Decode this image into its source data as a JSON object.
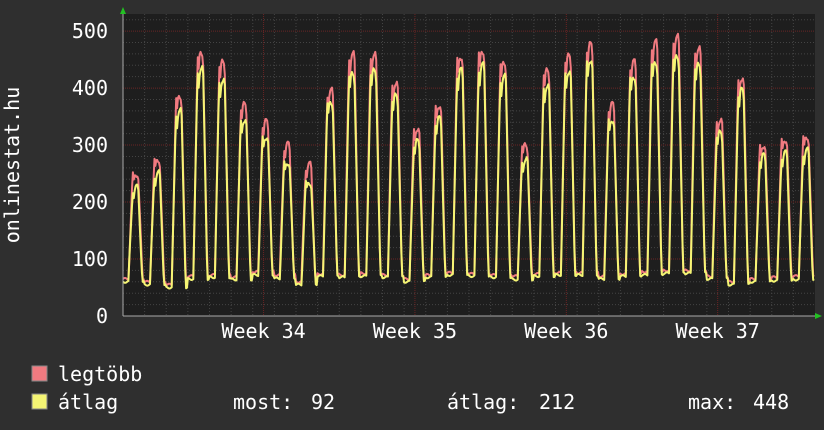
{
  "chart_data": {
    "type": "line",
    "ylabel": "onlinestat.hu",
    "ylim": [
      0,
      530
    ],
    "yticks": [
      0,
      100,
      200,
      300,
      400,
      500
    ],
    "xticks": [
      "Week 34",
      "Week 35",
      "Week 36",
      "Week 37"
    ],
    "days": 32,
    "series": [
      {
        "name": "legtöbb",
        "color": "#f07a80",
        "daily_peaks": [
          250,
          275,
          385,
          460,
          445,
          370,
          340,
          300,
          265,
          395,
          460,
          460,
          410,
          330,
          370,
          455,
          465,
          445,
          300,
          430,
          455,
          475,
          370,
          445,
          480,
          490,
          470,
          345,
          418,
          300,
          310,
          315
        ],
        "daily_mins": [
          65,
          60,
          55,
          70,
          72,
          68,
          78,
          72,
          60,
          74,
          72,
          75,
          72,
          65,
          72,
          76,
          74,
          72,
          70,
          74,
          76,
          76,
          70,
          74,
          78,
          80,
          80,
          70,
          60,
          65,
          68,
          70
        ]
      },
      {
        "name": "átlag",
        "color": "#f5f574",
        "daily_peaks": [
          225,
          250,
          360,
          435,
          415,
          345,
          315,
          270,
          235,
          375,
          425,
          430,
          385,
          305,
          345,
          430,
          440,
          420,
          275,
          405,
          430,
          450,
          345,
          420,
          445,
          455,
          440,
          320,
          395,
          280,
          285,
          290
        ],
        "daily_mins": [
          60,
          55,
          50,
          65,
          68,
          64,
          72,
          66,
          55,
          70,
          68,
          70,
          68,
          60,
          68,
          72,
          70,
          68,
          64,
          70,
          72,
          72,
          65,
          70,
          72,
          75,
          75,
          65,
          55,
          60,
          62,
          64
        ]
      }
    ],
    "grid": true,
    "legend": "bottom-left"
  },
  "stats": {
    "most_label": "most:",
    "most_value": "92",
    "atlag_label": "átlag:",
    "atlag_value": "212",
    "max_label": "max:",
    "max_value": "448"
  },
  "colors": {
    "background": "#2f2f2f",
    "plot_bg": "#1e1e1e",
    "grid_major": "#6a2424",
    "grid_minor": "#444444",
    "text": "#ffffff",
    "axis_arrow": "#22c022"
  }
}
